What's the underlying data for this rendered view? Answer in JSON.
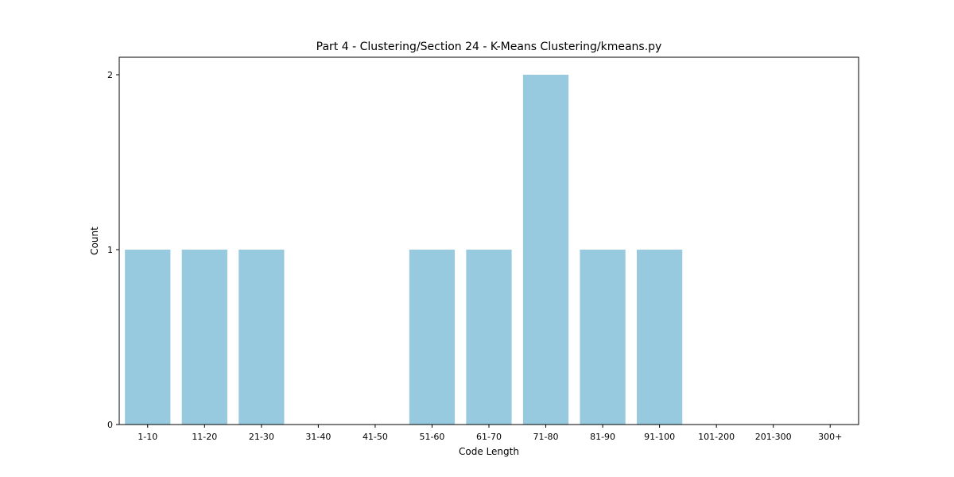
{
  "chart_data": {
    "type": "bar",
    "title": "Part 4 - Clustering/Section 24 - K-Means Clustering/kmeans.py",
    "xlabel": "Code Length",
    "ylabel": "Count",
    "categories": [
      "1-10",
      "11-20",
      "21-30",
      "31-40",
      "41-50",
      "51-60",
      "61-70",
      "71-80",
      "81-90",
      "91-100",
      "101-200",
      "201-300",
      "300+"
    ],
    "values": [
      1,
      1,
      1,
      0,
      0,
      1,
      1,
      2,
      1,
      1,
      0,
      0,
      0
    ],
    "ylim": [
      0,
      2.1
    ],
    "yticks": [
      0,
      1,
      2
    ],
    "bar_color": "#97c9df",
    "grid": false,
    "legend": "none"
  }
}
